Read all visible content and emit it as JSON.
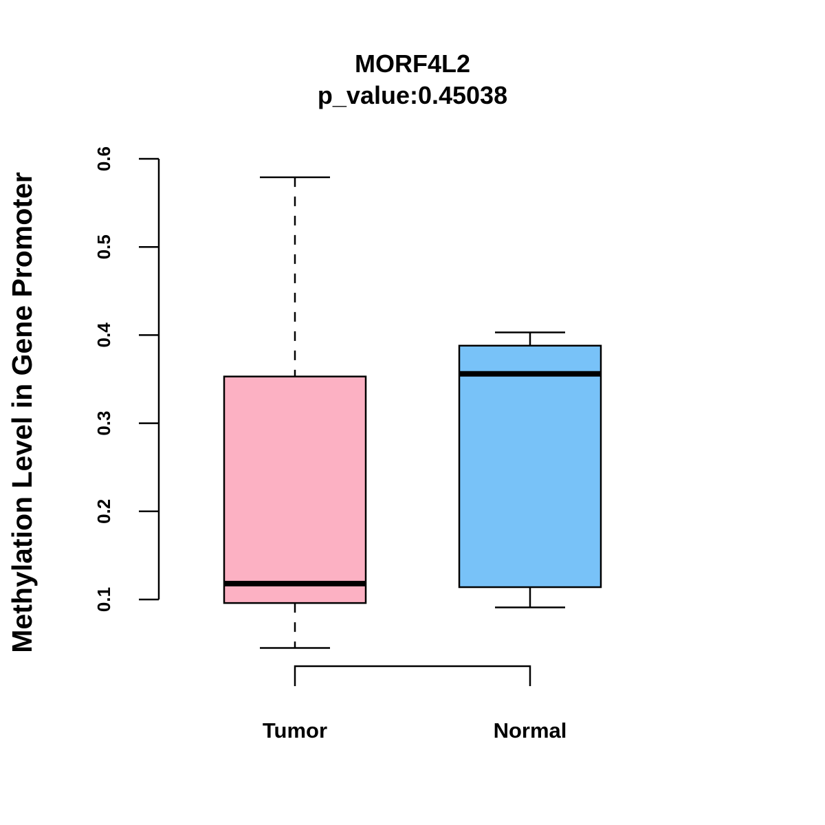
{
  "chart_data": {
    "type": "boxplot",
    "title": "MORF4L2",
    "subtitle": "p_value:0.45038",
    "xlabel": "",
    "ylabel": "Methylation Level in Gene Promoter",
    "ylim": [
      0.1,
      0.6
    ],
    "yticks": [
      "0.1",
      "0.2",
      "0.3",
      "0.4",
      "0.5",
      "0.6"
    ],
    "grid": false,
    "categories": [
      "Tumor",
      "Normal"
    ],
    "series": [
      {
        "name": "Tumor",
        "color": "#FCB1C3",
        "whisker_low": 0.045,
        "q1": 0.096,
        "median": 0.118,
        "q3": 0.353,
        "whisker_high": 0.579,
        "whisker_style": "dashed"
      },
      {
        "name": "Normal",
        "color": "#78C2F8",
        "whisker_low": 0.091,
        "q1": 0.114,
        "median": 0.356,
        "q3": 0.388,
        "whisker_high": 0.403,
        "whisker_style": "solid"
      }
    ],
    "comparison_bracket": [
      "Tumor",
      "Normal"
    ]
  }
}
